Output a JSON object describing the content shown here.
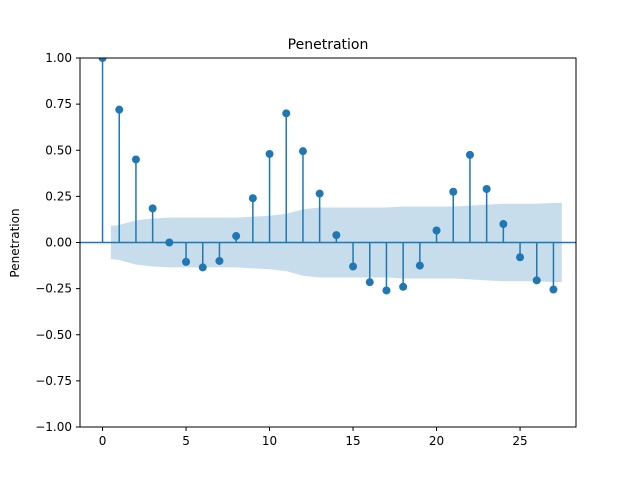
{
  "chart_data": {
    "type": "stem",
    "title": "Penetration",
    "ylabel": "Penetration",
    "xlabel": "",
    "xlim": [
      -1.35,
      28.35
    ],
    "ylim": [
      -1.0,
      1.0
    ],
    "xticks": [
      0,
      5,
      10,
      15,
      20,
      25
    ],
    "xtick_labels": [
      "0",
      "5",
      "10",
      "15",
      "20",
      "25"
    ],
    "yticks": [
      1.0,
      0.75,
      0.5,
      0.25,
      0.0,
      -0.25,
      -0.5,
      -0.75,
      -1.0
    ],
    "ytick_labels": [
      "1.00",
      "0.75",
      "0.50",
      "0.25",
      "0.00",
      "−0.25",
      "−0.50",
      "−0.75",
      "−1.00"
    ],
    "lags": [
      0,
      1,
      2,
      3,
      4,
      5,
      6,
      7,
      8,
      9,
      10,
      11,
      12,
      13,
      14,
      15,
      16,
      17,
      18,
      19,
      20,
      21,
      22,
      23,
      24,
      25,
      26,
      27
    ],
    "values": [
      1.0,
      0.72,
      0.45,
      0.185,
      0.0,
      -0.105,
      -0.135,
      -0.1,
      0.035,
      0.24,
      0.48,
      0.7,
      0.495,
      0.265,
      0.04,
      -0.13,
      -0.215,
      -0.26,
      -0.24,
      -0.125,
      0.065,
      0.275,
      0.475,
      0.29,
      0.1,
      -0.08,
      -0.205,
      -0.255
    ],
    "confidence_band": {
      "x": [
        0.5,
        1,
        2,
        3,
        4,
        5,
        6,
        7,
        8,
        9,
        10,
        11,
        12,
        13,
        14,
        15,
        16,
        17,
        18,
        19,
        20,
        21,
        22,
        23,
        24,
        25,
        26,
        27,
        27.5
      ],
      "upper": [
        0.09,
        0.095,
        0.12,
        0.13,
        0.135,
        0.135,
        0.135,
        0.135,
        0.135,
        0.14,
        0.145,
        0.155,
        0.18,
        0.19,
        0.19,
        0.19,
        0.19,
        0.19,
        0.195,
        0.195,
        0.195,
        0.195,
        0.2,
        0.205,
        0.21,
        0.21,
        0.21,
        0.215,
        0.215
      ],
      "lower": [
        -0.09,
        -0.095,
        -0.12,
        -0.13,
        -0.135,
        -0.135,
        -0.135,
        -0.135,
        -0.135,
        -0.14,
        -0.145,
        -0.155,
        -0.18,
        -0.19,
        -0.19,
        -0.19,
        -0.19,
        -0.19,
        -0.195,
        -0.195,
        -0.195,
        -0.195,
        -0.2,
        -0.205,
        -0.21,
        -0.21,
        -0.21,
        -0.215,
        -0.215
      ]
    },
    "grid": false,
    "colors": {
      "stem": "#1f77b4",
      "band": "#1f77b4",
      "zero_line": "#1f77b4"
    }
  }
}
